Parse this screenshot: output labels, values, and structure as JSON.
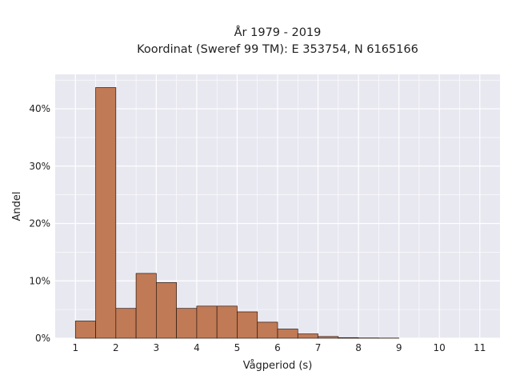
{
  "chart_data": {
    "type": "bar",
    "title": "År 1979 - 2019",
    "subtitle": "Koordinat (Sweref 99 TM): E 353754, N 6165166",
    "xlabel": "Vågperiod (s)",
    "ylabel": "Andel",
    "x_ticks": [
      "1",
      "2",
      "3",
      "4",
      "5",
      "6",
      "7",
      "8",
      "9",
      "10",
      "11"
    ],
    "y_ticks": [
      "0%",
      "10%",
      "20%",
      "30%",
      "40%"
    ],
    "y_tick_values": [
      0,
      10,
      20,
      30,
      40
    ],
    "xlim": [
      0.5,
      11.5
    ],
    "ylim": [
      0,
      46
    ],
    "bin_width": 0.5,
    "bins": [
      {
        "x0": 1.0,
        "x1": 1.5,
        "value": 3.0
      },
      {
        "x0": 1.5,
        "x1": 2.0,
        "value": 43.7
      },
      {
        "x0": 2.0,
        "x1": 2.5,
        "value": 5.2
      },
      {
        "x0": 2.5,
        "x1": 3.0,
        "value": 11.3
      },
      {
        "x0": 3.0,
        "x1": 3.5,
        "value": 9.7
      },
      {
        "x0": 3.5,
        "x1": 4.0,
        "value": 5.2
      },
      {
        "x0": 4.0,
        "x1": 4.5,
        "value": 5.6
      },
      {
        "x0": 4.5,
        "x1": 5.0,
        "value": 5.6
      },
      {
        "x0": 5.0,
        "x1": 5.5,
        "value": 4.6
      },
      {
        "x0": 5.5,
        "x1": 6.0,
        "value": 2.8
      },
      {
        "x0": 6.0,
        "x1": 6.5,
        "value": 1.6
      },
      {
        "x0": 6.5,
        "x1": 7.0,
        "value": 0.75
      },
      {
        "x0": 7.0,
        "x1": 7.5,
        "value": 0.3
      },
      {
        "x0": 7.5,
        "x1": 8.0,
        "value": 0.1
      },
      {
        "x0": 8.0,
        "x1": 8.5,
        "value": 0.05
      },
      {
        "x0": 8.5,
        "x1": 9.0,
        "value": 0.03
      }
    ],
    "grid": true,
    "colors": {
      "bar_fill": "#c07a55",
      "bar_edge": "#2b1a12",
      "plot_background": "#e8e8f1",
      "grid": "#ffffff"
    }
  }
}
